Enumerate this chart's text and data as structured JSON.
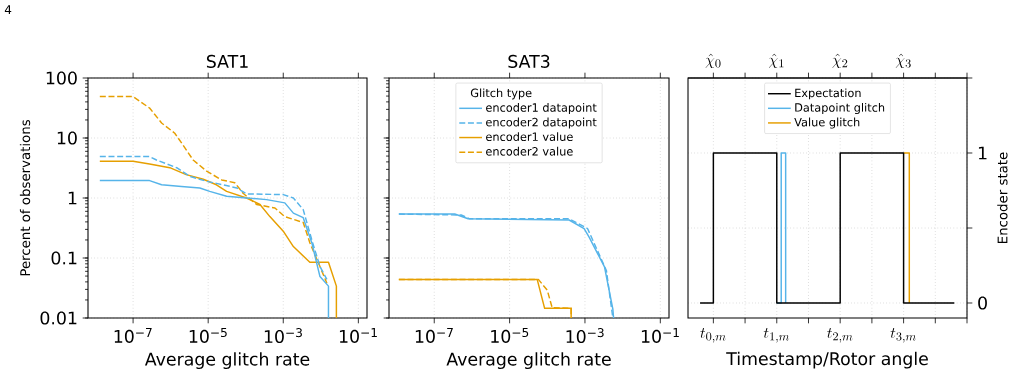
{
  "chart_data": [
    {
      "type": "line",
      "title": "SAT1",
      "xlabel": "Average glitch rate",
      "ylabel": "Percent of observations",
      "log": "xy",
      "grid": true,
      "annotations": [
        "4"
      ],
      "xlim": [
        6.3e-09,
        0.17
      ],
      "ylim": [
        0.01,
        100
      ],
      "xticks": [
        {
          "value": 1e-07,
          "label": "10$^{−7}$"
        },
        {
          "value": 1e-05,
          "label": "10$^{−5}$"
        },
        {
          "value": 0.001,
          "label": "10$^{−3}$"
        },
        {
          "value": 0.1,
          "label": "10$^{−1}$"
        }
      ],
      "yticks": [
        0.01,
        0.1,
        1,
        10,
        100
      ],
      "series": [
        {
          "color": "#56b4e9",
          "line_style": "solid",
          "x": [
            1.3e-08,
            2.75e-07,
            5.75e-07,
            1.95e-06,
            6e-06,
            1.1e-05,
            3.1e-05,
            0.000105,
            0.00036,
            0.0011,
            0.00186,
            0.0034,
            0.00575,
            0.0095,
            0.016,
            0.016
          ],
          "values": [
            1.95,
            1.95,
            1.66,
            1.55,
            1.47,
            1.29,
            1.07,
            1.0,
            0.94,
            0.83,
            0.56,
            0.47,
            0.18,
            0.049,
            0.034,
            0.01
          ]
        },
        {
          "color": "#56b4e9",
          "line_style": "dashed",
          "x": [
            1.3e-08,
            2.75e-07,
            4.2e-07,
            1.45e-06,
            3.2e-06,
            9.1e-06,
            2.5e-05,
            5.8e-05,
            0.000105,
            0.001,
            0.00186,
            0.0034,
            0.00575,
            0.0095,
            0.0145
          ],
          "values": [
            4.9,
            4.9,
            4.3,
            3.2,
            2.3,
            1.9,
            1.66,
            1.47,
            1.17,
            1.14,
            1.0,
            0.64,
            0.2,
            0.072,
            0.044
          ]
        },
        {
          "color": "#e69f00",
          "line_style": "solid",
          "x": [
            1.3e-08,
            1e-07,
            2.75e-07,
            9.5e-07,
            2.6e-06,
            7.4e-06,
            1.66e-05,
            3.1e-05,
            0.000105,
            0.00024,
            0.00044,
            0.001,
            0.00186,
            0.0051,
            0.016,
            0.026,
            0.026
          ],
          "values": [
            4.1,
            4.1,
            3.7,
            3.2,
            2.45,
            2.05,
            1.66,
            1.29,
            1.0,
            0.78,
            0.49,
            0.28,
            0.155,
            0.085,
            0.085,
            0.034,
            0.01
          ]
        },
        {
          "color": "#e69f00",
          "line_style": "dashed",
          "x": [
            1.3e-08,
            1e-07,
            2.75e-07,
            5.75e-07,
            1.29e-06,
            1.95e-06,
            3.98e-06,
            9.1e-06,
            2.3e-05,
            5.1e-05,
            8.5e-05,
            0.000195,
            0.0006,
            0.0011,
            0.0034,
            0.0051,
            0.0095,
            0.0145
          ],
          "values": [
            49,
            49,
            31.6,
            17.8,
            12,
            8.3,
            4.3,
            2.8,
            2.0,
            1.8,
            1.2,
            0.78,
            0.68,
            0.49,
            0.39,
            0.18,
            0.072,
            0.038
          ]
        }
      ]
    },
    {
      "type": "line",
      "title": "SAT3",
      "xlabel": "Average glitch rate",
      "log": "xy",
      "grid": true,
      "tick_labels": "x",
      "legend": "top",
      "legend_title": "Glitch type",
      "xlim": [
        6.3e-09,
        0.17
      ],
      "ylim": [
        0.01,
        100
      ],
      "xticks": [
        {
          "value": 1e-07,
          "label": "10$^{−7}$"
        },
        {
          "value": 1e-05,
          "label": "10$^{−5}$"
        },
        {
          "value": 0.001,
          "label": "10$^{−3}$"
        },
        {
          "value": 0.1,
          "label": "10$^{−1}$"
        }
      ],
      "yticks": [
        0.01,
        0.1,
        1,
        10,
        100
      ],
      "series": [
        {
          "name": "encoder1 datapoint",
          "color": "#56b4e9",
          "line_style": "solid",
          "x": [
            1.15e-08,
            3.5e-07,
            7.9e-07,
            0.00038,
            0.00095,
            0.0013,
            0.0033,
            0.0055,
            0.00575
          ],
          "values": [
            0.54,
            0.54,
            0.45,
            0.43,
            0.31,
            0.22,
            0.071,
            0.014,
            0.01
          ]
        },
        {
          "name": "encoder2 datapoint",
          "color": "#56b4e9",
          "line_style": "dashed",
          "x": [
            1.15e-08,
            5.2e-07,
            8.7e-07,
            0.00038,
            0.00117,
            0.0037,
            0.0055
          ],
          "values": [
            0.54,
            0.52,
            0.45,
            0.45,
            0.31,
            0.062,
            0.01
          ]
        },
        {
          "name": "encoder1 value",
          "color": "#e69f00",
          "line_style": "solid",
          "x": [
            1.15e-08,
            5.4e-05,
            8.5e-05,
            0.00043,
            0.00043
          ],
          "values": [
            0.044,
            0.044,
            0.0145,
            0.0145,
            0.01
          ]
        },
        {
          "name": "encoder2 value",
          "color": "#e69f00",
          "line_style": "dashed",
          "x": [
            1.15e-08,
            5.8e-05,
            0.0001,
            0.000135,
            0.00043,
            0.00043
          ],
          "values": [
            0.044,
            0.044,
            0.029,
            0.0148,
            0.0145,
            0.01
          ]
        }
      ]
    },
    {
      "type": "step",
      "xlabel": "Timestamp/Rotor angle",
      "y2label": "Encoder state",
      "grid": true,
      "legend": "top",
      "xlim": [
        -0.4,
        4
      ],
      "x2lim": [
        -0.4,
        4
      ],
      "y2lim": [
        -0.1,
        1.5
      ],
      "xticks": [
        {
          "value": 0,
          "label": "t_{0,m}"
        },
        {
          "value": 0.5,
          "label": null
        },
        {
          "value": 1,
          "label": "t_{1,m}"
        },
        {
          "value": 1.5,
          "label": null
        },
        {
          "value": 2,
          "label": "t_{2,m}"
        },
        {
          "value": 2.5,
          "label": null
        },
        {
          "value": 3,
          "label": "t_{3,m}"
        },
        {
          "value": 3.5,
          "label": null
        },
        {
          "value": 4,
          "label": null
        }
      ],
      "x2ticks": [
        {
          "value": 0,
          "label": "\\hat{\\chi}_0"
        },
        {
          "value": 0.5,
          "label": null
        },
        {
          "value": 1,
          "label": "\\hat{\\chi}_1"
        },
        {
          "value": 1.5,
          "label": null
        },
        {
          "value": 2,
          "label": "\\hat{\\chi}_2"
        },
        {
          "value": 2.5,
          "label": null
        },
        {
          "value": 3,
          "label": "\\hat{\\chi}_3"
        },
        {
          "value": 3.5,
          "label": null
        },
        {
          "value": 4,
          "label": null
        }
      ],
      "y2ticks": [
        0,
        {
          "value": 0.5,
          "label": null
        },
        1,
        {
          "value": 1.5,
          "label": null
        }
      ],
      "series": [
        {
          "name": "Expectation",
          "color": "#000000",
          "axis": "y2",
          "x": [
            -0.21,
            0,
            1,
            2,
            3,
            3.8
          ],
          "values": [
            0,
            1,
            0,
            1,
            0,
            0
          ]
        },
        {
          "name": "Datapoint glitch",
          "color": "#56b4e9",
          "axis": "y2",
          "x": [
            1,
            1.07,
            1.14
          ],
          "values": [
            0,
            1,
            0
          ]
        },
        {
          "name": "Value glitch",
          "color": "#e69f00",
          "axis": "y2",
          "x": [
            3,
            3.09
          ],
          "values": [
            1,
            0
          ]
        }
      ]
    }
  ]
}
